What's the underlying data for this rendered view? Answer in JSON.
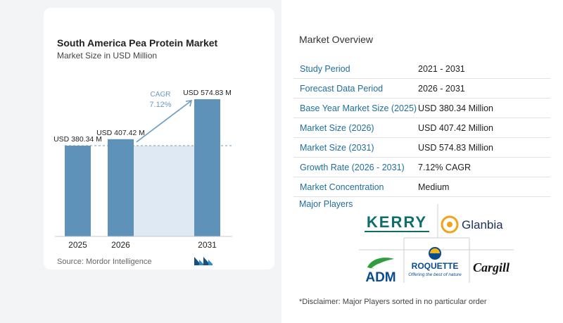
{
  "chart": {
    "title": "South America Pea Protein Market",
    "subtitle": "Market Size in USD Million",
    "source": "Source:  Mordor Intelligence",
    "cagr_label": "CAGR",
    "cagr_value": "7.12%"
  },
  "chart_data": {
    "type": "bar",
    "title": "South America Pea Protein Market",
    "subtitle": "Market Size in USD Million",
    "categories": [
      "2025",
      "2026",
      "2031"
    ],
    "values": [
      380.34,
      407.42,
      574.83
    ],
    "data_labels": [
      "USD 380.34 M",
      "USD 407.42 M",
      "USD 574.83 M"
    ],
    "ylim": [
      0,
      574.83
    ],
    "annotation": {
      "text": "CAGR 7.12%",
      "from": "2026",
      "to": "2031"
    },
    "grid": false,
    "colors": {
      "bar": "#5f92b9",
      "shade": "#dfe9f3",
      "arrow": "#6b9cc2",
      "cagr_text": "#6b9cc2"
    }
  },
  "overview": {
    "title": "Market Overview",
    "rows": [
      {
        "key": "Study Period",
        "value": "2021 - 2031"
      },
      {
        "key": "Forecast Data Period",
        "value": "2026 - 2031"
      },
      {
        "key": "Base Year Market Size (2025)",
        "value": "USD 380.34 Million"
      },
      {
        "key": "Market Size (2026)",
        "value": "USD 407.42 Million"
      },
      {
        "key": "Market Size (2031)",
        "value": "USD 574.83 Million"
      },
      {
        "key": "Growth Rate (2026 - 2031)",
        "value": "7.12% CAGR"
      },
      {
        "key": "Market Concentration",
        "value": "Medium"
      }
    ]
  },
  "players": {
    "title": "Major Players",
    "logos": [
      {
        "name": "KERRY",
        "color": "#0d6e6a"
      },
      {
        "name": "Glanbia",
        "color": "#1c2f5a"
      },
      {
        "name": "ADM",
        "color": "#0a4c8c"
      },
      {
        "name": "ROQUETTE",
        "tagline": "Offering the best of nature",
        "color": "#0a4a8f"
      },
      {
        "name": "Cargill",
        "color": "#111111"
      }
    ],
    "disclaimer": "*Disclaimer: Major Players sorted in no particular order"
  }
}
